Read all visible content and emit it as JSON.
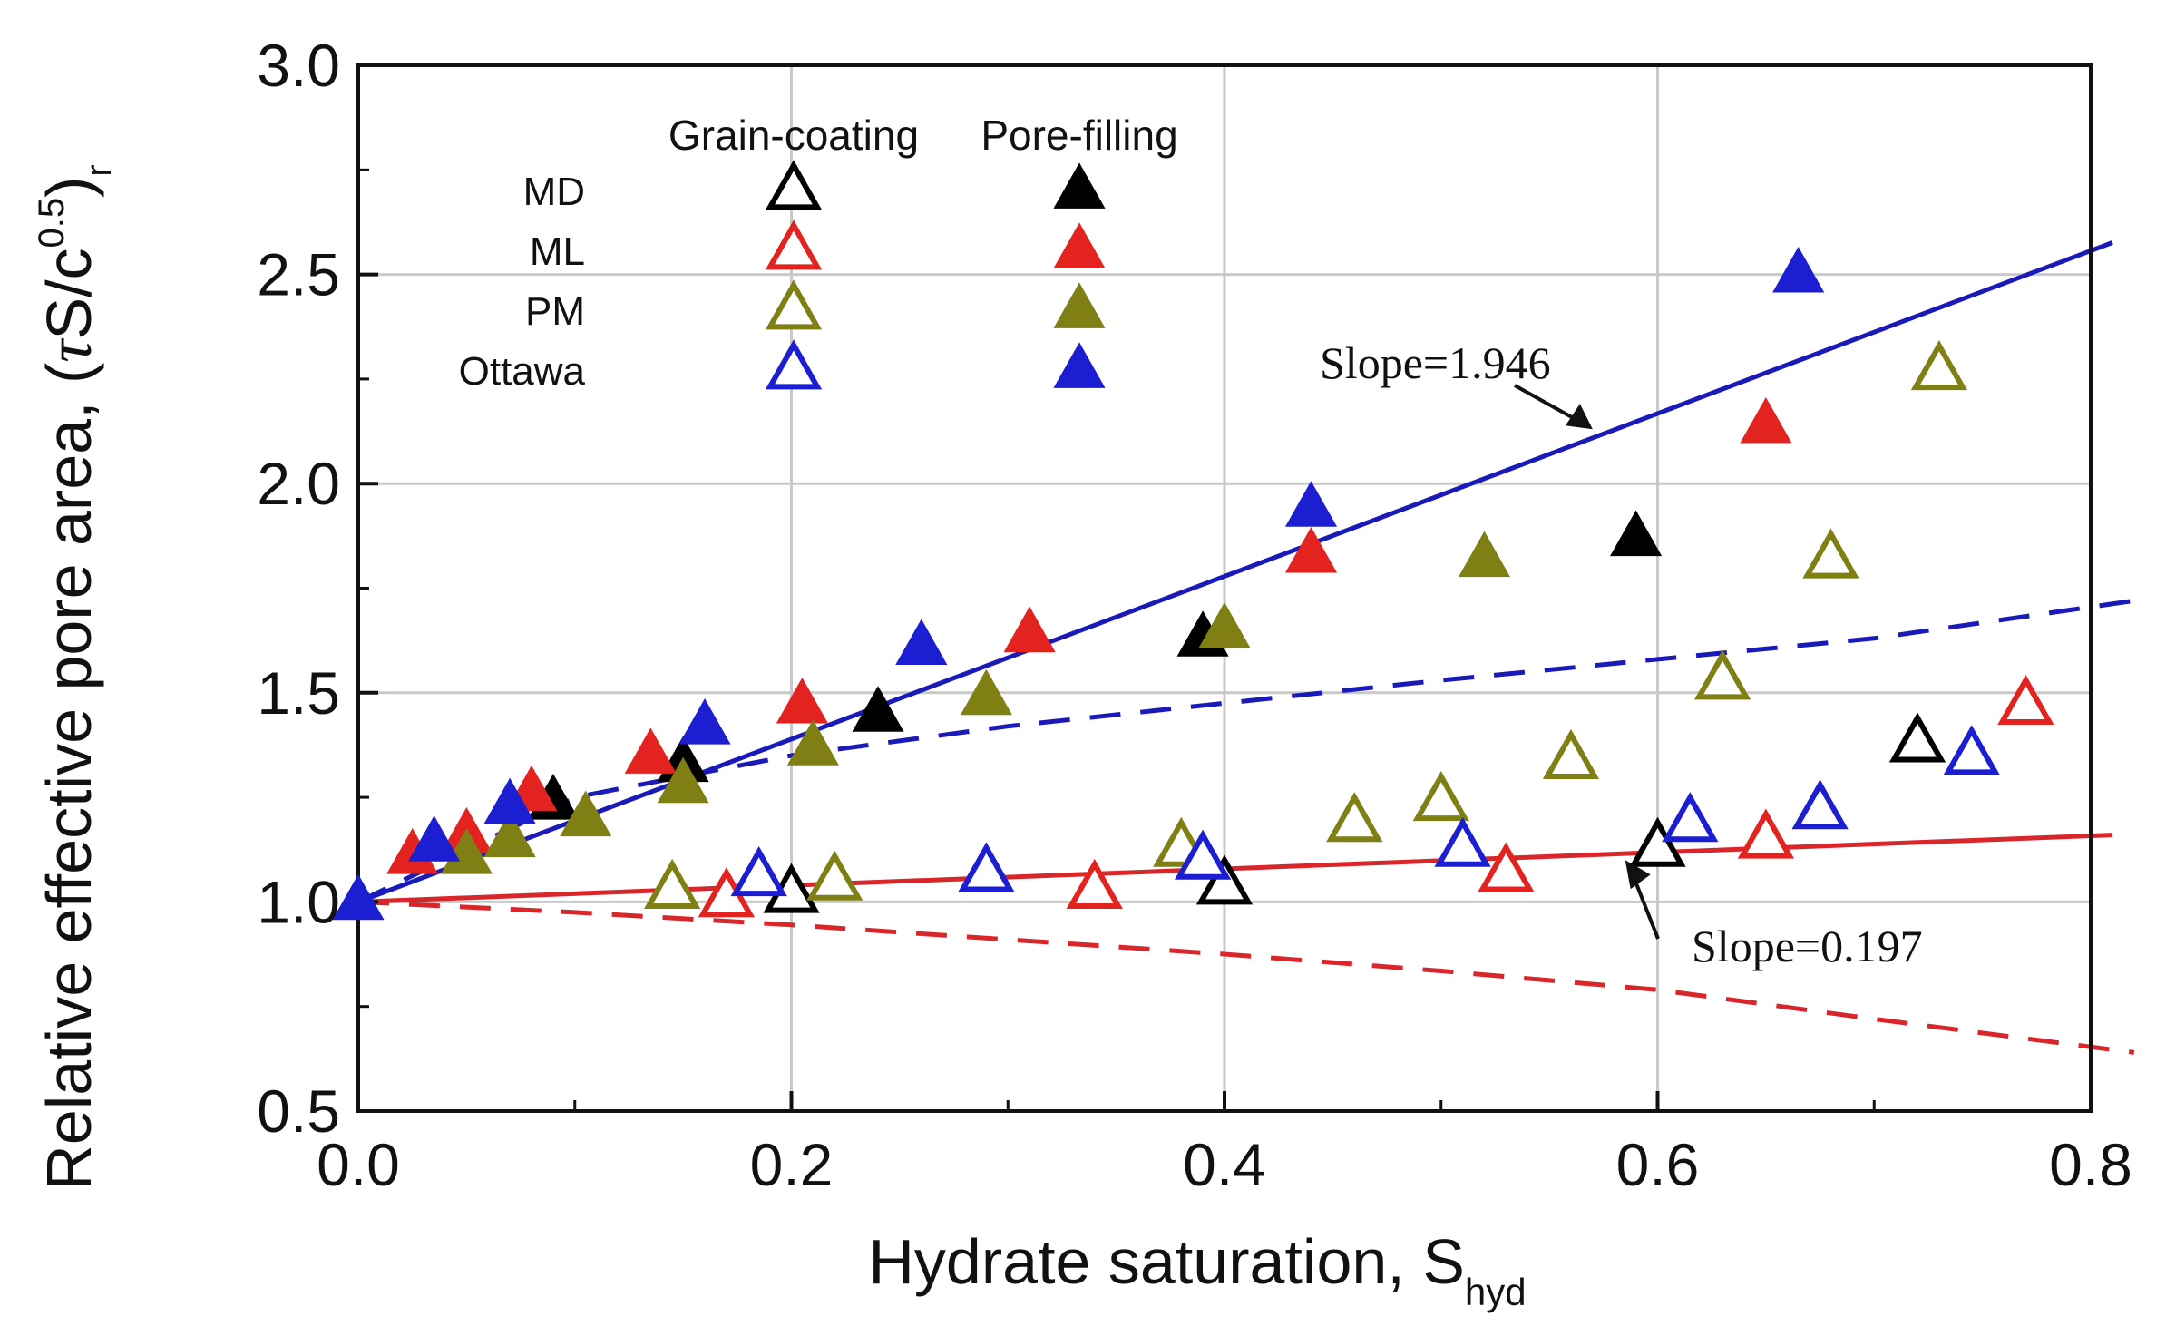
{
  "chart_data": {
    "type": "scatter",
    "title": "",
    "xlabel": {
      "main": "Hydrate saturation, S",
      "sub": "hyd"
    },
    "ylabel": {
      "main": "Relative effective pore area, (",
      "tau": "τ",
      "mid": "S/c",
      "sup": "0.5",
      "close": ")",
      "sub": "r"
    },
    "xlim": [
      0.0,
      0.8
    ],
    "ylim": [
      0.5,
      3.0
    ],
    "xticks": [
      0.0,
      0.2,
      0.4,
      0.6,
      0.8
    ],
    "xtick_labels": [
      "0.0",
      "0.2",
      "0.4",
      "0.6",
      "0.8"
    ],
    "yticks": [
      0.5,
      1.0,
      1.5,
      2.0,
      2.5,
      3.0
    ],
    "ytick_labels": [
      "0.5",
      "1.0",
      "1.5",
      "2.0",
      "2.5",
      "3.0"
    ],
    "grid": true,
    "colors": {
      "MD": "#000000",
      "ML": "#e3231f",
      "PM": "#7f7f14",
      "Ottawa": "#1c1fd1",
      "fit_blue": "#1a1ab8",
      "fit_red": "#d9262b"
    },
    "legend": {
      "position": "top-left",
      "col_headers": [
        "Grain-coating",
        "Pore-filling"
      ],
      "rows": [
        "MD",
        "ML",
        "PM",
        "Ottawa"
      ]
    },
    "series": [
      {
        "name": "MD grain-coating",
        "material": "MD",
        "filled": false,
        "points": [
          [
            0.2,
            1.02
          ],
          [
            0.4,
            1.04
          ],
          [
            0.6,
            1.13
          ],
          [
            0.72,
            1.38
          ]
        ]
      },
      {
        "name": "MD pore-filling",
        "material": "MD",
        "filled": true,
        "points": [
          [
            0.09,
            1.24
          ],
          [
            0.15,
            1.33
          ],
          [
            0.24,
            1.45
          ],
          [
            0.39,
            1.63
          ],
          [
            0.59,
            1.87
          ]
        ]
      },
      {
        "name": "ML grain-coating",
        "material": "ML",
        "filled": false,
        "points": [
          [
            0.17,
            1.01
          ],
          [
            0.34,
            1.03
          ],
          [
            0.53,
            1.07
          ],
          [
            0.65,
            1.15
          ],
          [
            0.77,
            1.47
          ]
        ]
      },
      {
        "name": "ML pore-filling",
        "material": "ML",
        "filled": true,
        "points": [
          [
            0.025,
            1.11
          ],
          [
            0.05,
            1.16
          ],
          [
            0.08,
            1.26
          ],
          [
            0.135,
            1.35
          ],
          [
            0.205,
            1.47
          ],
          [
            0.31,
            1.64
          ],
          [
            0.44,
            1.83
          ],
          [
            0.65,
            2.14
          ]
        ]
      },
      {
        "name": "PM grain-coating",
        "material": "PM",
        "filled": false,
        "points": [
          [
            0.145,
            1.03
          ],
          [
            0.22,
            1.05
          ],
          [
            0.38,
            1.13
          ],
          [
            0.46,
            1.19
          ],
          [
            0.5,
            1.24
          ],
          [
            0.56,
            1.34
          ],
          [
            0.63,
            1.53
          ],
          [
            0.68,
            1.82
          ],
          [
            0.73,
            2.27
          ]
        ]
      },
      {
        "name": "PM pore-filling",
        "material": "PM",
        "filled": true,
        "points": [
          [
            0.05,
            1.11
          ],
          [
            0.07,
            1.15
          ],
          [
            0.105,
            1.2
          ],
          [
            0.15,
            1.28
          ],
          [
            0.21,
            1.37
          ],
          [
            0.29,
            1.49
          ],
          [
            0.4,
            1.65
          ],
          [
            0.52,
            1.82
          ]
        ]
      },
      {
        "name": "Ottawa grain-coating",
        "material": "Ottawa",
        "filled": false,
        "points": [
          [
            0.185,
            1.06
          ],
          [
            0.29,
            1.07
          ],
          [
            0.39,
            1.1
          ],
          [
            0.51,
            1.13
          ],
          [
            0.615,
            1.19
          ],
          [
            0.675,
            1.22
          ],
          [
            0.745,
            1.35
          ]
        ]
      },
      {
        "name": "Ottawa pore-filling",
        "material": "Ottawa",
        "filled": true,
        "points": [
          [
            0.0,
            1.0
          ],
          [
            0.035,
            1.14
          ],
          [
            0.07,
            1.23
          ],
          [
            0.16,
            1.42
          ],
          [
            0.26,
            1.61
          ],
          [
            0.44,
            1.94
          ],
          [
            0.665,
            2.5
          ]
        ]
      }
    ],
    "lines": [
      {
        "name": "pore-filling linear fit",
        "color": "fit_blue",
        "style": "solid",
        "x": [
          0.0,
          0.81
        ],
        "y": [
          1.0,
          2.576
        ]
      },
      {
        "name": "grain-coating linear fit",
        "color": "fit_red",
        "style": "solid",
        "x": [
          0.0,
          0.81
        ],
        "y": [
          1.0,
          1.16
        ]
      },
      {
        "name": "pore-filling dashed model",
        "color": "fit_blue",
        "style": "dashed",
        "x": [
          0.0,
          0.1,
          0.2,
          0.3,
          0.4,
          0.5,
          0.6,
          0.7,
          0.82
        ],
        "y": [
          1.0,
          1.25,
          1.35,
          1.42,
          1.475,
          1.53,
          1.58,
          1.63,
          1.72
        ]
      },
      {
        "name": "grain-coating dashed model",
        "color": "fit_red",
        "style": "dashed",
        "x": [
          0.0,
          0.1,
          0.2,
          0.3,
          0.4,
          0.5,
          0.6,
          0.7,
          0.82
        ],
        "y": [
          1.0,
          0.975,
          0.945,
          0.91,
          0.875,
          0.835,
          0.79,
          0.72,
          0.64
        ]
      }
    ],
    "annotations": [
      {
        "text": "Slope=1.946",
        "target": [
          0.57,
          2.13
        ]
      },
      {
        "text": "Slope=0.197",
        "target": [
          0.585,
          1.1
        ]
      }
    ]
  }
}
